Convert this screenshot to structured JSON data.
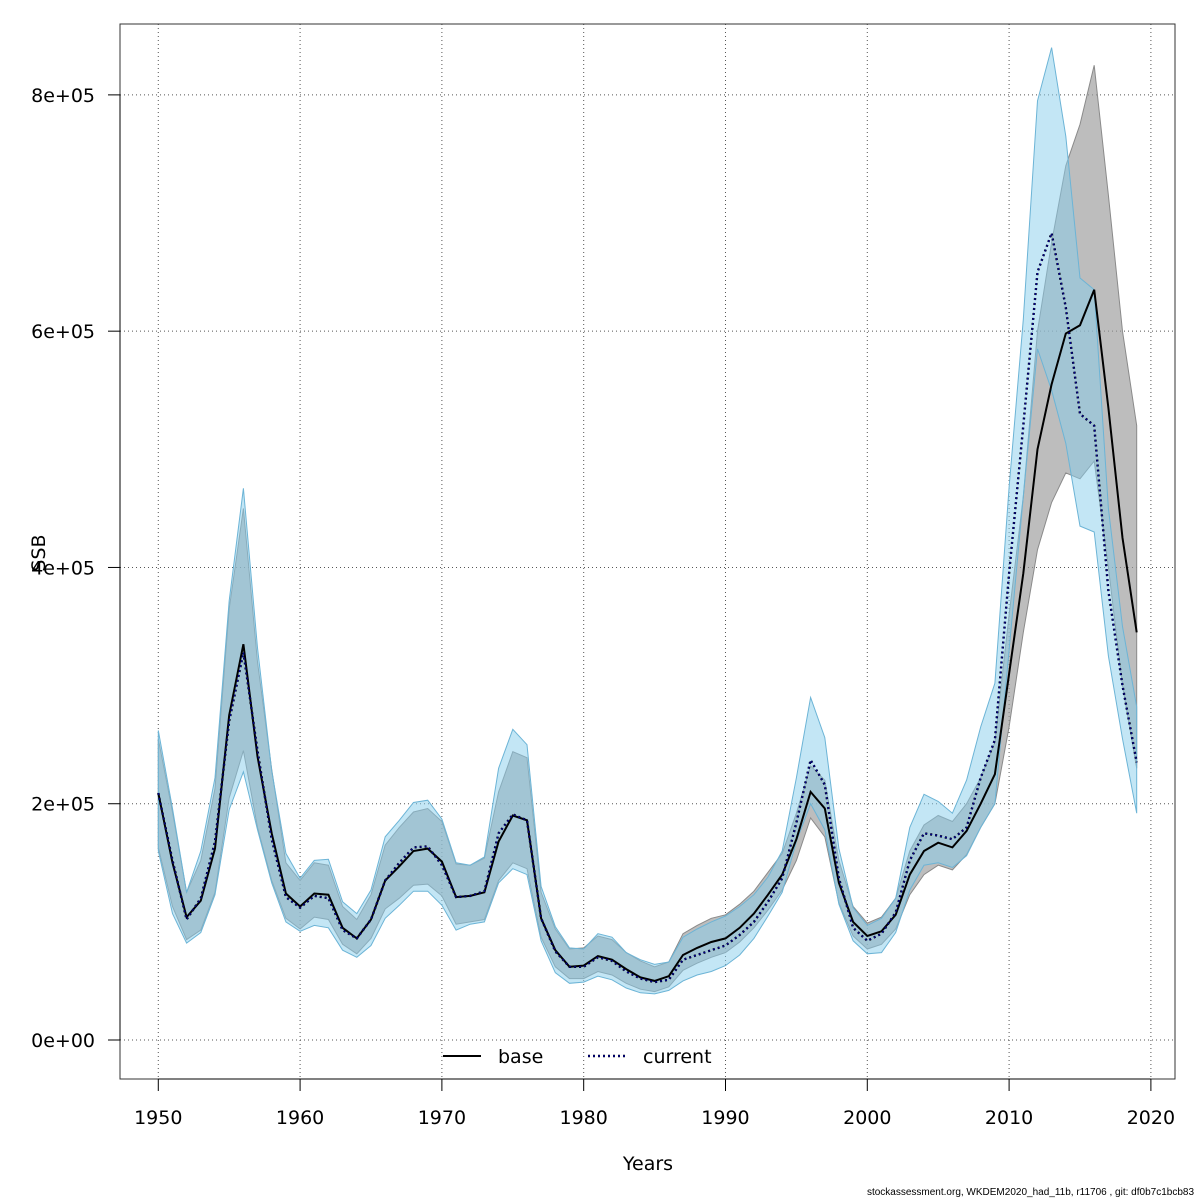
{
  "chart_data": {
    "type": "area",
    "xlabel": "Years",
    "ylabel": "SSB",
    "xlim": [
      1947.3,
      2021.7
    ],
    "ylim": [
      -33000,
      860000
    ],
    "xticks": [
      1950,
      1960,
      1970,
      1980,
      1990,
      2000,
      2010,
      2020
    ],
    "yticks": [
      0,
      200000,
      400000,
      600000,
      800000
    ],
    "ytick_labels": [
      "0e+00",
      "2e+05",
      "4e+05",
      "6e+05",
      "8e+05"
    ],
    "grid": true,
    "legend_position": "bottom-center",
    "colors": {
      "base_band": "#999999",
      "current_band": "#87ceeb",
      "base_line": "#000000",
      "current_line": "#00008b"
    },
    "x": [
      1950,
      1951,
      1952,
      1953,
      1954,
      1955,
      1956,
      1957,
      1958,
      1959,
      1960,
      1961,
      1962,
      1963,
      1964,
      1965,
      1966,
      1967,
      1968,
      1969,
      1970,
      1971,
      1972,
      1973,
      1974,
      1975,
      1976,
      1977,
      1978,
      1979,
      1980,
      1981,
      1982,
      1983,
      1984,
      1985,
      1986,
      1987,
      1988,
      1989,
      1990,
      1991,
      1992,
      1993,
      1994,
      1995,
      1996,
      1997,
      1998,
      1999,
      2000,
      2001,
      2002,
      2003,
      2004,
      2005,
      2006,
      2007,
      2008,
      2009,
      2010,
      2011,
      2012,
      2013,
      2014,
      2015,
      2016,
      2017,
      2018,
      2019
    ],
    "series": [
      {
        "name": "base",
        "style": "solid",
        "values": [
          209000,
          150000,
          104000,
          118000,
          162000,
          275000,
          335000,
          240000,
          175000,
          124000,
          113000,
          124000,
          123000,
          95000,
          86000,
          102000,
          135000,
          147000,
          160000,
          162000,
          151000,
          121000,
          122000,
          125000,
          168000,
          190000,
          186000,
          103000,
          76000,
          62000,
          63000,
          71000,
          68000,
          60000,
          53000,
          50000,
          54000,
          72000,
          78000,
          83000,
          86000,
          95000,
          107000,
          123000,
          140000,
          170000,
          210000,
          196000,
          133000,
          100000,
          88000,
          92000,
          106000,
          140000,
          160000,
          167000,
          163000,
          177000,
          200000,
          225000,
          310000,
          395000,
          500000,
          555000,
          598000,
          605000,
          635000,
          535000,
          425000,
          345000
        ],
        "lower": [
          163000,
          113000,
          85000,
          93000,
          125000,
          205000,
          245000,
          180000,
          135000,
          103000,
          94000,
          104000,
          102000,
          81000,
          73000,
          86000,
          111000,
          120000,
          131000,
          132000,
          122000,
          98000,
          100000,
          102000,
          135000,
          150000,
          145000,
          87000,
          62000,
          52000,
          52000,
          58000,
          55000,
          48000,
          43000,
          41000,
          45000,
          59000,
          65000,
          70000,
          74000,
          83000,
          95000,
          110000,
          127000,
          152000,
          188000,
          172000,
          116000,
          88000,
          77000,
          81000,
          94000,
          123000,
          140000,
          148000,
          144000,
          157000,
          180000,
          200000,
          265000,
          345000,
          415000,
          455000,
          480000,
          475000,
          490000,
          400000,
          300000,
          230000
        ],
        "upper": [
          255000,
          193000,
          125000,
          152000,
          213000,
          365000,
          450000,
          320000,
          229000,
          150000,
          135000,
          150000,
          148000,
          113000,
          102000,
          123000,
          165000,
          180000,
          193000,
          196000,
          185000,
          149000,
          148000,
          154000,
          210000,
          244000,
          239000,
          125000,
          94000,
          77000,
          78000,
          88000,
          85000,
          74000,
          67000,
          62000,
          66000,
          90000,
          97000,
          103000,
          106000,
          115000,
          126000,
          142000,
          158000,
          192000,
          232000,
          220000,
          152000,
          113000,
          99000,
          104000,
          120000,
          160000,
          182000,
          190000,
          185000,
          200000,
          222000,
          252000,
          360000,
          460000,
          600000,
          675000,
          740000,
          775000,
          825000,
          715000,
          600000,
          520000
        ]
      },
      {
        "name": "current",
        "style": "dotted",
        "values": [
          209000,
          152000,
          102000,
          120000,
          168000,
          270000,
          328000,
          245000,
          170000,
          121000,
          112000,
          122000,
          120000,
          93000,
          86000,
          102000,
          135000,
          150000,
          163000,
          164000,
          148000,
          121000,
          122000,
          126000,
          175000,
          191000,
          186000,
          103000,
          75000,
          62000,
          62000,
          70000,
          67000,
          58000,
          52000,
          49000,
          51000,
          68000,
          72000,
          76000,
          80000,
          89000,
          100000,
          117000,
          137000,
          184000,
          237000,
          216000,
          137000,
          95000,
          84000,
          90000,
          108000,
          152000,
          175000,
          173000,
          170000,
          180000,
          222000,
          254000,
          395000,
          520000,
          650000,
          683000,
          620000,
          530000,
          520000,
          380000,
          300000,
          235000
        ],
        "lower": [
          160000,
          107000,
          82000,
          91000,
          123000,
          195000,
          227000,
          178000,
          133000,
          100000,
          92000,
          97000,
          95000,
          76000,
          70000,
          80000,
          103000,
          114000,
          126000,
          126000,
          114000,
          93000,
          98000,
          100000,
          133000,
          145000,
          140000,
          84000,
          57000,
          48000,
          49000,
          54000,
          51000,
          44000,
          40000,
          39000,
          42000,
          50000,
          55000,
          58000,
          63000,
          72000,
          86000,
          105000,
          125000,
          168000,
          200000,
          178000,
          115000,
          84000,
          73000,
          74000,
          91000,
          127000,
          148000,
          150000,
          146000,
          156000,
          180000,
          200000,
          330000,
          460000,
          585000,
          550000,
          505000,
          435000,
          430000,
          325000,
          255000,
          192000
        ],
        "upper": [
          262000,
          196000,
          125000,
          160000,
          222000,
          372000,
          467000,
          332000,
          228000,
          158000,
          137000,
          152000,
          153000,
          117000,
          107000,
          127000,
          172000,
          186000,
          201000,
          203000,
          187000,
          150000,
          148000,
          155000,
          230000,
          263000,
          250000,
          130000,
          96000,
          78000,
          77000,
          90000,
          87000,
          74000,
          68000,
          64000,
          66000,
          87000,
          94000,
          100000,
          105000,
          113000,
          123000,
          138000,
          160000,
          222000,
          290000,
          256000,
          162000,
          112000,
          97000,
          103000,
          120000,
          180000,
          208000,
          202000,
          192000,
          220000,
          265000,
          302000,
          468000,
          610000,
          795000,
          840000,
          765000,
          645000,
          635000,
          450000,
          350000,
          282000
        ]
      }
    ]
  },
  "footer": "stockassessment.org, WKDEM2020_had_11b, r11706 , git: df0b7c1bcb83"
}
